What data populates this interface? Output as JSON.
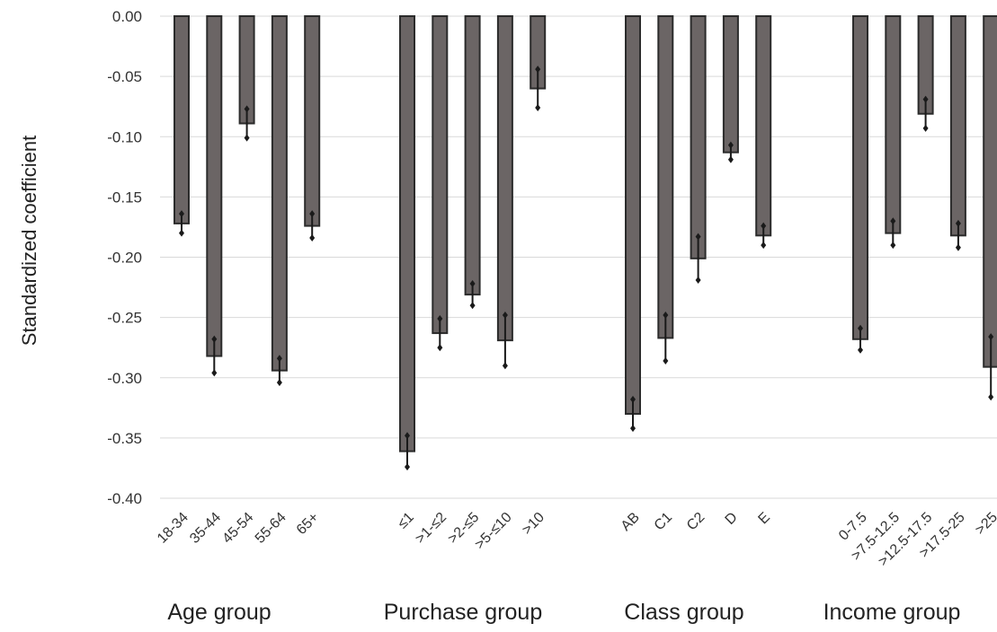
{
  "chart_data": {
    "type": "bar",
    "title": "",
    "xlabel": "",
    "ylabel": "Standardized coefficient",
    "ylim": [
      -0.4,
      0.0
    ],
    "yticks": [
      "0.00",
      "-0.05",
      "-0.10",
      "-0.15",
      "-0.20",
      "-0.25",
      "-0.30",
      "-0.35",
      "-0.40"
    ],
    "grid": true,
    "legend": "none",
    "bar_color": "#6b6565",
    "bar_edge_color": "#2b2b2b",
    "errorbar_color": "#1a1a1a",
    "groups": [
      {
        "name": "Age group",
        "bars": [
          {
            "label": "18-34",
            "value": -0.172,
            "err": 0.008
          },
          {
            "label": "35-44",
            "value": -0.282,
            "err": 0.014
          },
          {
            "label": "45-54",
            "value": -0.089,
            "err": 0.012
          },
          {
            "label": "55-64",
            "value": -0.294,
            "err": 0.01
          },
          {
            "label": "65+",
            "value": -0.174,
            "err": 0.01
          }
        ]
      },
      {
        "name": "Purchase group",
        "bars": [
          {
            "label": "≤1",
            "value": -0.361,
            "err": 0.013
          },
          {
            "label": ">1-≤2",
            "value": -0.263,
            "err": 0.012
          },
          {
            "label": ">2-≤5",
            "value": -0.231,
            "err": 0.009
          },
          {
            "label": ">5-≤10",
            "value": -0.269,
            "err": 0.021
          },
          {
            "label": ">10",
            "value": -0.06,
            "err": 0.016
          }
        ]
      },
      {
        "name": "Class group",
        "bars": [
          {
            "label": "AB",
            "value": -0.33,
            "err": 0.012
          },
          {
            "label": "C1",
            "value": -0.267,
            "err": 0.019
          },
          {
            "label": "C2",
            "value": -0.201,
            "err": 0.018
          },
          {
            "label": "D",
            "value": -0.113,
            "err": 0.006
          },
          {
            "label": "E",
            "value": -0.182,
            "err": 0.008
          }
        ]
      },
      {
        "name": "Income group",
        "bars": [
          {
            "label": "0-7.5",
            "value": -0.268,
            "err": 0.009
          },
          {
            "label": ">7.5-12.5",
            "value": -0.18,
            "err": 0.01
          },
          {
            "label": ">12.5-17.5",
            "value": -0.081,
            "err": 0.012
          },
          {
            "label": ">17.5-25",
            "value": -0.182,
            "err": 0.01
          },
          {
            "label": ">25",
            "value": -0.291,
            "err": 0.025
          }
        ]
      }
    ]
  }
}
